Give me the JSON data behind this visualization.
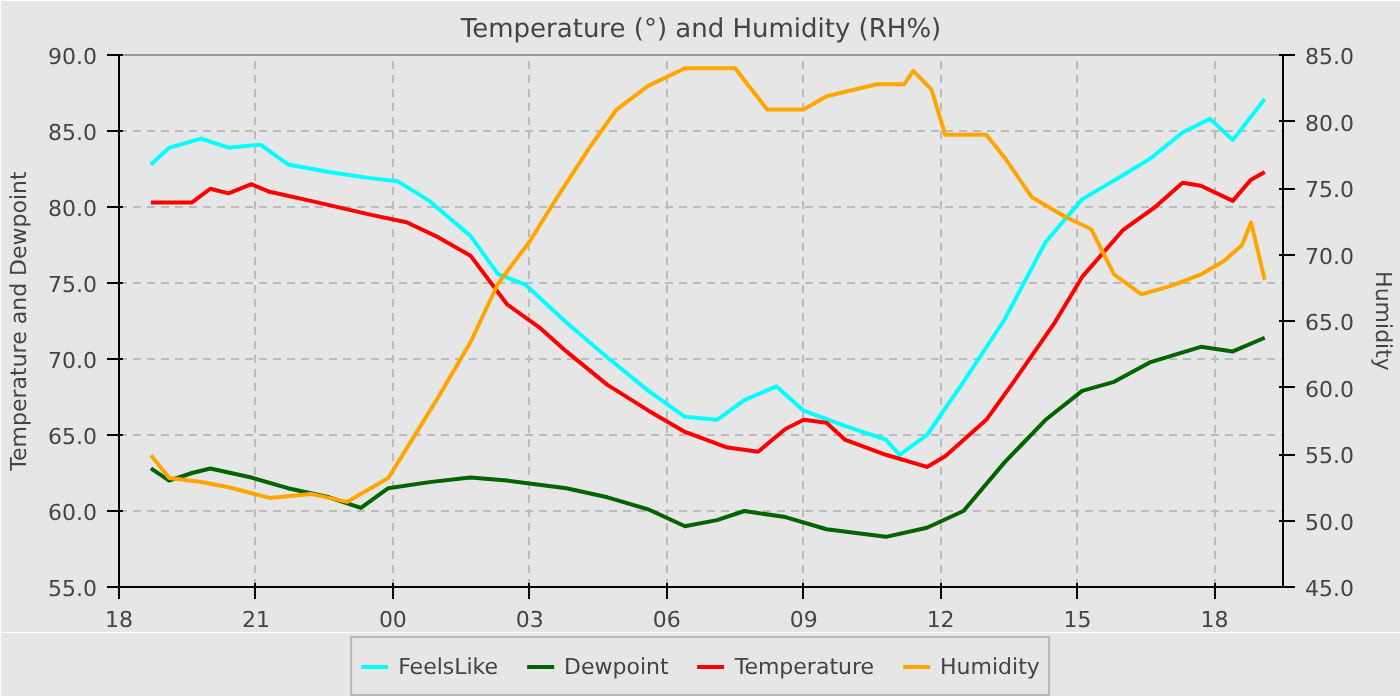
{
  "chart_data": {
    "type": "line",
    "title": "Temperature (°) and Humidity (RH%)",
    "ylabel": "Temperature and Dewpoint",
    "y2label": "Humidity",
    "xlim": [
      18,
      43.5
    ],
    "xticks": [
      {
        "value": 18,
        "label": "18"
      },
      {
        "value": 21,
        "label": "21"
      },
      {
        "value": 24,
        "label": "00"
      },
      {
        "value": 27,
        "label": "03"
      },
      {
        "value": 30,
        "label": "06"
      },
      {
        "value": 33,
        "label": "09"
      },
      {
        "value": 36,
        "label": "12"
      },
      {
        "value": 39,
        "label": "15"
      },
      {
        "value": 42,
        "label": "18"
      }
    ],
    "ylim": [
      55,
      90
    ],
    "yticks": [
      {
        "value": 55,
        "label": "55.0"
      },
      {
        "value": 60,
        "label": "60.0"
      },
      {
        "value": 65,
        "label": "65.0"
      },
      {
        "value": 70,
        "label": "70.0"
      },
      {
        "value": 75,
        "label": "75.0"
      },
      {
        "value": 80,
        "label": "80.0"
      },
      {
        "value": 85,
        "label": "85.0"
      },
      {
        "value": 90,
        "label": "90.0"
      }
    ],
    "y2lim": [
      45,
      85
    ],
    "y2ticks": [
      {
        "value": 45,
        "label": "45.0"
      },
      {
        "value": 50,
        "label": "50.0"
      },
      {
        "value": 55,
        "label": "55.0"
      },
      {
        "value": 60,
        "label": "60.0"
      },
      {
        "value": 65,
        "label": "65.0"
      },
      {
        "value": 70,
        "label": "70.0"
      },
      {
        "value": 75,
        "label": "75.0"
      },
      {
        "value": 80,
        "label": "80.0"
      },
      {
        "value": 85,
        "label": "85.0"
      }
    ],
    "grid": true,
    "legend": "bottom",
    "line_style": "solid",
    "series": [
      {
        "name": "FeelsLike",
        "color": "#00ffff",
        "x": [
          18.7,
          19.1,
          19.8,
          20.4,
          21.1,
          21.7,
          22.6,
          23.5,
          24.1,
          24.8,
          25.7,
          26.3,
          26.9,
          27.8,
          28.7,
          29.6,
          30.4,
          31.1,
          31.7,
          32.4,
          33.0,
          33.9,
          34.8,
          35.1,
          35.7,
          36.5,
          37.4,
          38.3,
          39.1,
          40.0,
          40.6,
          41.3,
          41.9,
          42.4,
          43.1
        ],
        "values": [
          82.8,
          83.9,
          84.5,
          83.9,
          84.1,
          82.8,
          82.3,
          81.9,
          81.7,
          80.4,
          78.1,
          75.6,
          74.9,
          72.4,
          70.1,
          67.9,
          66.2,
          66.0,
          67.3,
          68.2,
          66.6,
          65.6,
          64.7,
          63.7,
          65.0,
          68.5,
          72.6,
          77.7,
          80.5,
          82.1,
          83.2,
          84.9,
          85.8,
          84.4,
          87.1
        ]
      },
      {
        "name": "Dewpoint",
        "color": "#006400",
        "x": [
          18.7,
          19.1,
          19.6,
          20.0,
          20.9,
          21.7,
          22.6,
          23.3,
          23.9,
          24.8,
          25.7,
          26.5,
          27.8,
          28.7,
          29.6,
          30.4,
          31.1,
          31.7,
          32.6,
          33.5,
          34.8,
          35.7,
          36.5,
          37.4,
          38.3,
          39.1,
          39.8,
          40.6,
          41.7,
          42.4,
          43.1
        ],
        "values": [
          62.8,
          62.0,
          62.5,
          62.8,
          62.2,
          61.5,
          60.9,
          60.2,
          61.5,
          61.9,
          62.2,
          62.0,
          61.5,
          60.9,
          60.1,
          59.0,
          59.4,
          60.0,
          59.6,
          58.8,
          58.3,
          58.9,
          60.0,
          63.2,
          66.0,
          67.9,
          68.5,
          69.8,
          70.8,
          70.5,
          71.4
        ]
      },
      {
        "name": "Temperature",
        "color": "#ff0000",
        "x": [
          18.7,
          19.6,
          20.0,
          20.4,
          20.9,
          21.3,
          22.2,
          23.5,
          24.3,
          25.0,
          25.7,
          26.5,
          27.2,
          27.8,
          28.7,
          29.6,
          30.4,
          31.3,
          32.0,
          32.6,
          33.0,
          33.5,
          33.9,
          34.8,
          35.7,
          36.1,
          37.0,
          37.6,
          38.5,
          39.1,
          40.0,
          40.7,
          41.3,
          41.7,
          42.4,
          42.8,
          43.1
        ],
        "values": [
          80.3,
          80.3,
          81.2,
          80.9,
          81.5,
          81.0,
          80.4,
          79.5,
          79.0,
          78.0,
          76.8,
          73.6,
          72.1,
          70.5,
          68.3,
          66.6,
          65.2,
          64.2,
          63.9,
          65.4,
          66.0,
          65.8,
          64.7,
          63.7,
          62.9,
          63.6,
          66.0,
          68.5,
          72.4,
          75.4,
          78.5,
          80.0,
          81.6,
          81.4,
          80.4,
          81.8,
          82.3
        ]
      },
      {
        "name": "Humidity",
        "color": "#ffa500",
        "axis": "y2",
        "x": [
          18.7,
          19.1,
          19.8,
          20.4,
          21.3,
          22.2,
          23.0,
          23.9,
          24.3,
          25.0,
          25.7,
          26.3,
          27.0,
          27.6,
          28.3,
          28.9,
          29.6,
          30.4,
          31.5,
          31.7,
          32.2,
          33.0,
          33.5,
          34.6,
          35.2,
          35.4,
          35.8,
          36.1,
          37.0,
          37.4,
          38.0,
          38.7,
          39.3,
          39.8,
          40.4,
          41.1,
          41.7,
          42.2,
          42.6,
          42.8,
          43.1
        ],
        "values": [
          54.9,
          53.2,
          52.9,
          52.5,
          51.7,
          52.0,
          51.4,
          53.2,
          55.4,
          59.3,
          63.4,
          67.8,
          71.0,
          74.3,
          78.0,
          80.9,
          82.7,
          84.0,
          84.0,
          83.1,
          80.9,
          80.9,
          81.9,
          82.8,
          82.8,
          83.8,
          82.4,
          79.0,
          79.0,
          77.3,
          74.3,
          72.9,
          71.9,
          68.5,
          67.0,
          67.7,
          68.5,
          69.5,
          70.7,
          72.4,
          68.1
        ]
      }
    ]
  }
}
